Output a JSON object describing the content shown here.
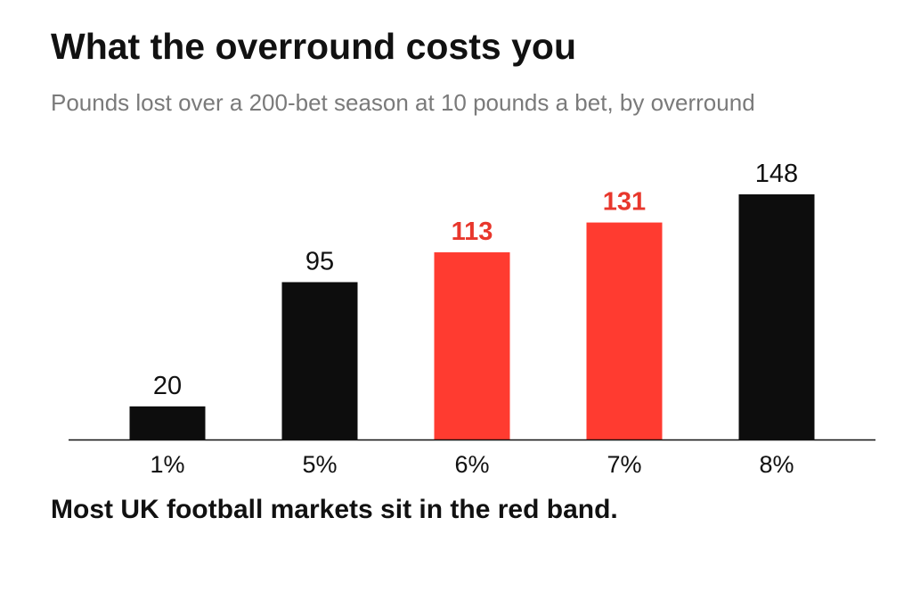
{
  "header": {
    "title": "What the overround costs you",
    "subtitle": "Pounds lost over a 200-bet season at 10 pounds a bet, by overround"
  },
  "footer": {
    "note": "Most UK football markets sit in the red band."
  },
  "colors": {
    "default_bar": "#0d0d0d",
    "highlight_bar": "#ff3b30",
    "default_label": "#111111",
    "highlight_label": "#e8372c",
    "axis": "#111111"
  },
  "chart_data": {
    "type": "bar",
    "title": "What the overround costs you",
    "subtitle": "Pounds lost over a 200-bet season at 10 pounds a bet, by overround",
    "xlabel": "",
    "ylabel": "",
    "categories": [
      "1%",
      "5%",
      "6%",
      "7%",
      "8%"
    ],
    "values": [
      20,
      95,
      113,
      131,
      148
    ],
    "highlighted": [
      false,
      false,
      true,
      true,
      false
    ],
    "ylim": [
      0,
      148
    ],
    "grid": false,
    "legend": "none",
    "data_labels": true
  }
}
